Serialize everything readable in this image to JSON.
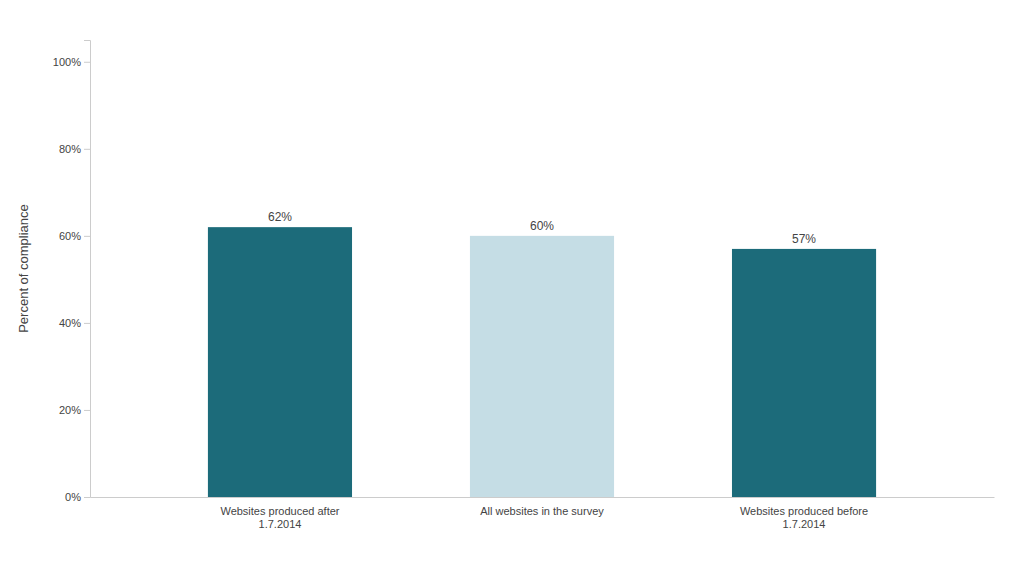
{
  "chart_data": {
    "type": "bar",
    "categories": [
      "Websites produced after\n1.7.2014",
      "All websites in the survey",
      "Websites produced before\n1.7.2014"
    ],
    "values": [
      0.62,
      0.6,
      0.57
    ],
    "value_labels": [
      "62%",
      "60%",
      "57%"
    ],
    "colors": [
      "#1c6b7a",
      "#c5dde5",
      "#1c6b7a"
    ],
    "ylabel": "Percent of compliance",
    "ylim": [
      0,
      1.05
    ],
    "yticks": [
      {
        "value": 0,
        "label": "0%"
      },
      {
        "value": 0.2,
        "label": "20%"
      },
      {
        "value": 0.4,
        "label": "40%"
      },
      {
        "value": 0.6,
        "label": "60%"
      },
      {
        "value": 0.8,
        "label": "80%"
      },
      {
        "value": 1.0,
        "label": "100%"
      }
    ],
    "grid": false,
    "data_labels": true
  }
}
